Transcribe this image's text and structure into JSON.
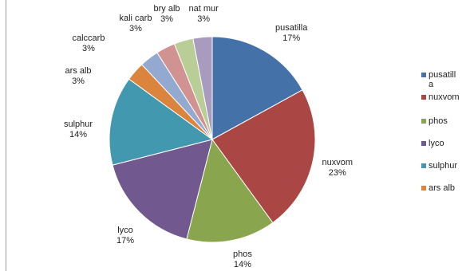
{
  "chart_data": {
    "type": "pie",
    "title": "",
    "slices": [
      {
        "label": "pusatilla",
        "value": 17,
        "percent_label": "17%",
        "color": "#4472a8"
      },
      {
        "label": "nuxvom",
        "value": 23,
        "percent_label": "23%",
        "color": "#aa4643"
      },
      {
        "label": "phos",
        "value": 14,
        "percent_label": "14%",
        "color": "#89a54e"
      },
      {
        "label": "lyco",
        "value": 17,
        "percent_label": "17%",
        "color": "#71588f"
      },
      {
        "label": "sulphur",
        "value": 14,
        "percent_label": "14%",
        "color": "#4198af"
      },
      {
        "label": "ars alb",
        "value": 3,
        "percent_label": "3%",
        "color": "#db843d"
      },
      {
        "label": "calccarb",
        "value": 3,
        "percent_label": "3%",
        "color": "#93a9cf"
      },
      {
        "label": "kali carb",
        "value": 3,
        "percent_label": "3%",
        "color": "#d19392"
      },
      {
        "label": "bry alb",
        "value": 3,
        "percent_label": "3%",
        "color": "#b9cd96"
      },
      {
        "label": "nat mur",
        "value": 3,
        "percent_label": "3%",
        "color": "#a99bbd"
      }
    ],
    "legend": {
      "position": "right",
      "entries": [
        "pusatilla",
        "nuxvom",
        "phos",
        "lyco",
        "sulphur",
        "ars alb"
      ]
    }
  }
}
